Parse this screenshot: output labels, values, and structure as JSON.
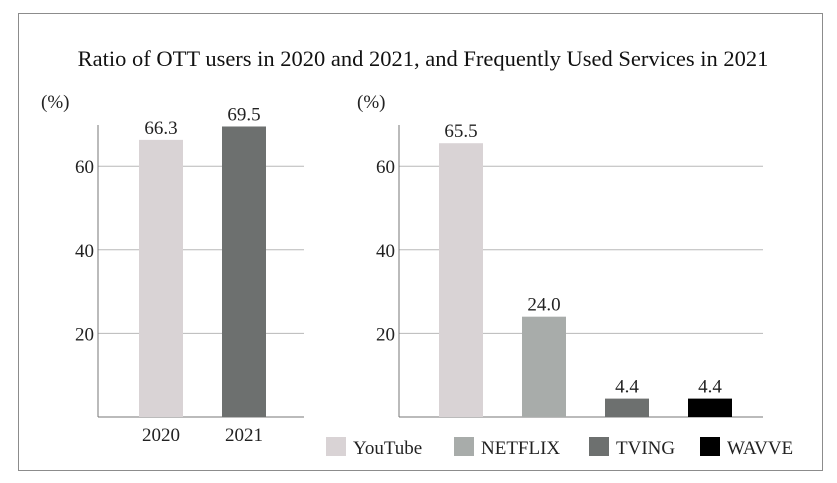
{
  "chart_data": [
    {
      "type": "bar",
      "title": "Ratio of OTT users in 2020 and 2021, and Frequently Used Services in 2021",
      "ylabel": "(%)",
      "categories": [
        "2020",
        "2021"
      ],
      "values": [
        66.3,
        69.5
      ],
      "value_labels": [
        "66.3",
        "69.5"
      ],
      "colors": [
        "#d9d3d5",
        "#6d706f"
      ],
      "yticks": [
        "20",
        "40",
        "60"
      ],
      "ylim": [
        0,
        75
      ],
      "grid": true
    },
    {
      "type": "bar",
      "ylabel": "(%)",
      "categories": [
        "YouTube",
        "NETFLIX",
        "TVING",
        "WAVVE"
      ],
      "values": [
        65.5,
        24.0,
        4.4,
        4.4
      ],
      "value_labels": [
        "65.5",
        "24.0",
        "4.4",
        "4.4"
      ],
      "colors": [
        "#d9d3d5",
        "#a8acaa",
        "#6d706f",
        "#000000"
      ],
      "yticks": [
        "20",
        "40",
        "60"
      ],
      "ylim": [
        0,
        75
      ],
      "grid": true,
      "legend": "bottom"
    }
  ]
}
